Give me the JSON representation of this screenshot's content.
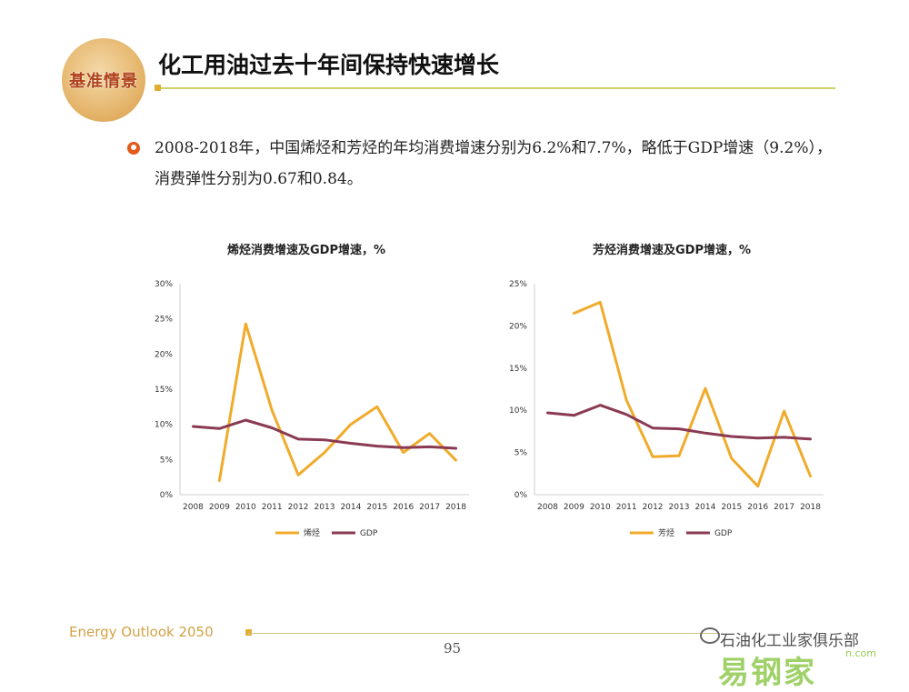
{
  "header": {
    "logo_text": "基准情景",
    "title": "化工用油过去十年间保持快速增长"
  },
  "bullet": {
    "text": "2008-2018年，中国烯烃和芳烃的年均消费增速分别为6.2%和7.7%，略低于GDP增速（9.2%），消费弹性分别为0.67和0.84。"
  },
  "colors": {
    "series_main": "#f0ab2b",
    "series_gdp": "#8a3a52",
    "axis": "#cfcfcf"
  },
  "chart_data": [
    {
      "type": "line",
      "title": "烯烃消费增速及GDP增速，%",
      "x": [
        "2008",
        "2009",
        "2010",
        "2011",
        "2012",
        "2013",
        "2014",
        "2015",
        "2016",
        "2017",
        "2018"
      ],
      "ylim": [
        0,
        30
      ],
      "yticks": [
        "0%",
        "5%",
        "10%",
        "15%",
        "20%",
        "25%",
        "30%"
      ],
      "grid": false,
      "legend": "bottom",
      "series": [
        {
          "name": "烯烃",
          "values": [
            null,
            2.0,
            24.3,
            12.0,
            2.8,
            6.0,
            10.0,
            12.5,
            6.0,
            8.7,
            4.9
          ]
        },
        {
          "name": "GDP",
          "values": [
            9.7,
            9.4,
            10.6,
            9.5,
            7.9,
            7.8,
            7.3,
            6.9,
            6.7,
            6.8,
            6.6
          ]
        }
      ]
    },
    {
      "type": "line",
      "title": "芳烃消费增速及GDP增速，%",
      "x": [
        "2008",
        "2009",
        "2010",
        "2011",
        "2012",
        "2013",
        "2014",
        "2015",
        "2016",
        "2017",
        "2018"
      ],
      "ylim": [
        0,
        25
      ],
      "yticks": [
        "0%",
        "5%",
        "10%",
        "15%",
        "20%",
        "25%"
      ],
      "grid": false,
      "legend": "bottom",
      "series": [
        {
          "name": "芳烃",
          "values": [
            null,
            21.5,
            22.8,
            11.2,
            4.5,
            4.6,
            12.6,
            4.3,
            1.0,
            9.9,
            2.2
          ]
        },
        {
          "name": "GDP",
          "values": [
            9.7,
            9.4,
            10.6,
            9.5,
            7.9,
            7.8,
            7.3,
            6.9,
            6.7,
            6.8,
            6.6
          ]
        }
      ]
    }
  ],
  "footer": {
    "brand": "Energy Outlook 2050",
    "page_number": "95",
    "watermark": "石油化工业家俱乐部",
    "watermark_site": "易钢家",
    "watermark_url": "n.com"
  }
}
